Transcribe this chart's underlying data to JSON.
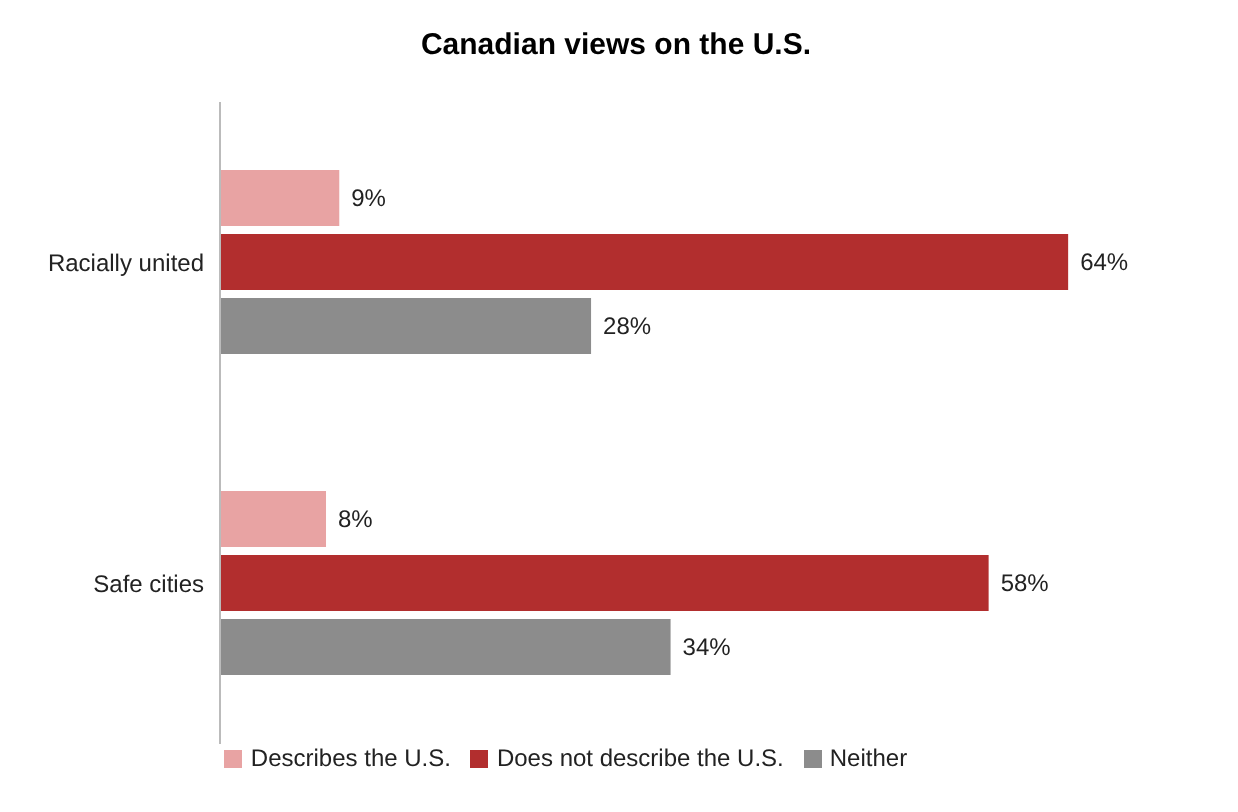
{
  "chart_data": {
    "type": "bar",
    "orientation": "horizontal",
    "title": "Canadian views on the U.S.",
    "categories": [
      "Racially united",
      "Safe cities"
    ],
    "series": [
      {
        "name": "Describes the U.S.",
        "color": "#e8a3a3",
        "values": [
          9,
          8
        ],
        "value_labels": [
          "9%",
          "8%"
        ]
      },
      {
        "name": "Does not describe the U.S.",
        "color": "#b22e2e",
        "values": [
          64,
          58
        ],
        "value_labels": [
          "64%",
          "58%"
        ]
      },
      {
        "name": "Neither",
        "color": "#8c8c8c",
        "values": [
          28,
          34
        ],
        "value_labels": [
          "28%",
          "34%"
        ]
      }
    ],
    "legend": "bottom",
    "tick_labels": "y"
  }
}
